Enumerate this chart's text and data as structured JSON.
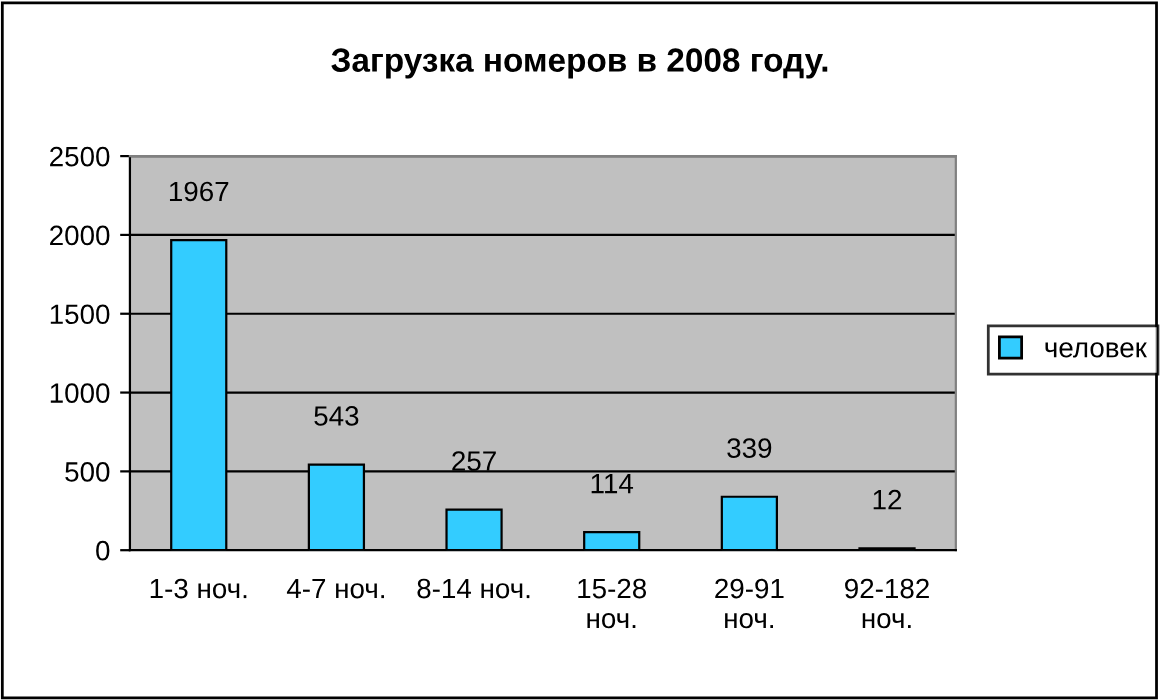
{
  "chart_data": {
    "type": "bar",
    "title": "Загрузка номеров в 2008 году.",
    "categories": [
      "1-3 ноч.",
      "4-7 ноч.",
      "8-14 ноч.",
      "15-28 ноч.",
      "29-91 ноч.",
      "92-182 ноч."
    ],
    "series": [
      {
        "name": "человек",
        "color": "#33ccff",
        "values": [
          1967,
          543,
          257,
          114,
          339,
          12
        ]
      }
    ],
    "ylim": [
      0,
      2500
    ],
    "yticks": [
      0,
      500,
      1000,
      1500,
      2000,
      2500
    ],
    "grid": "y",
    "legend": "right",
    "data_labels": true
  }
}
